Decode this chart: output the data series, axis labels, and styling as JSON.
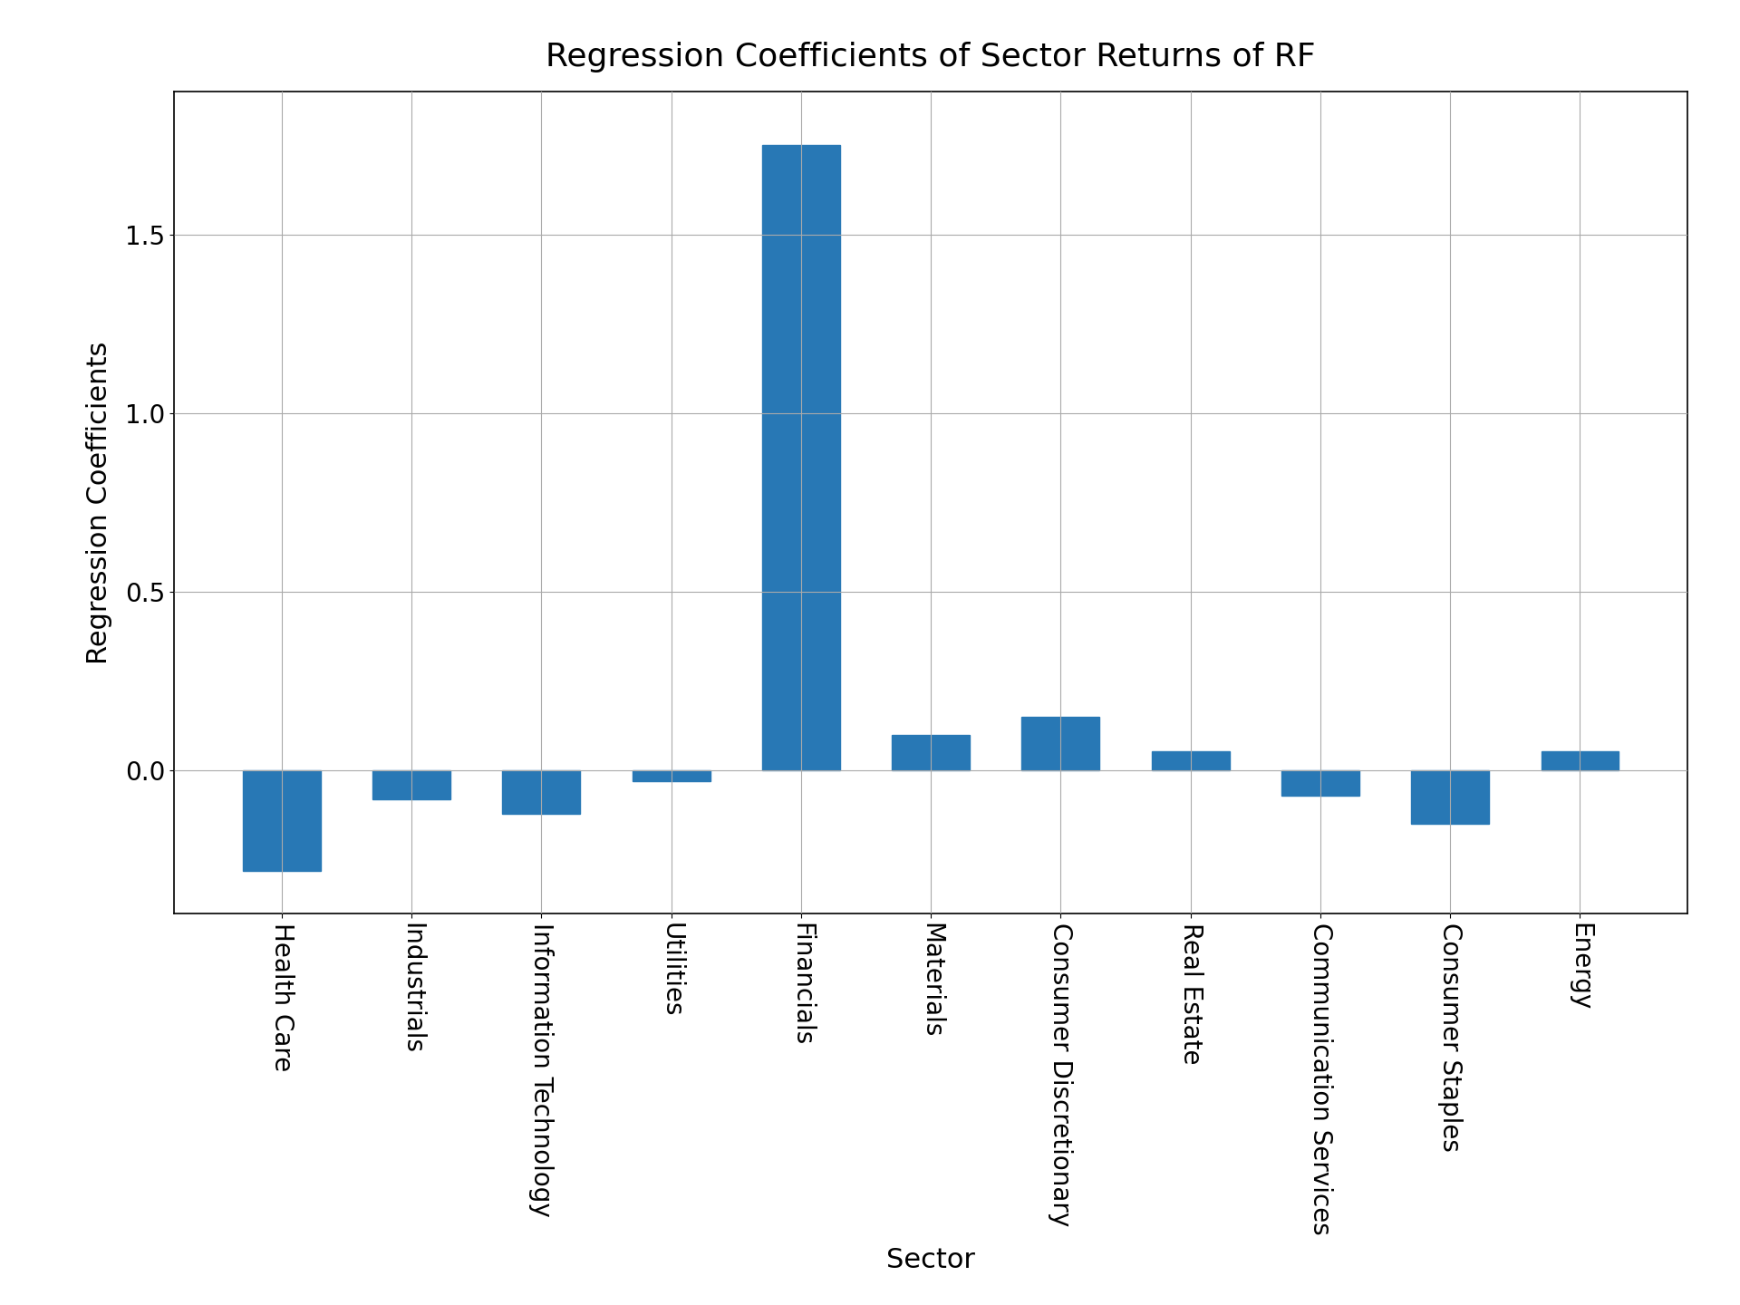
{
  "categories": [
    "Health Care",
    "Industrials",
    "Information Technology",
    "Utilities",
    "Financials",
    "Materials",
    "Consumer Discretionary",
    "Real Estate",
    "Communication Services",
    "Consumer Staples",
    "Energy"
  ],
  "values": [
    -0.28,
    -0.08,
    -0.12,
    -0.03,
    1.75,
    0.1,
    0.15,
    0.055,
    -0.07,
    -0.15,
    0.055
  ],
  "bar_color": "#2878b5",
  "title": "Regression Coefficients of Sector Returns of RF",
  "xlabel": "Sector",
  "ylabel": "Regression Coefficients",
  "title_fontsize": 26,
  "label_fontsize": 22,
  "tick_fontsize": 20,
  "background_color": "#ffffff",
  "grid_color": "#aaaaaa",
  "ylim": [
    -0.4,
    1.9
  ],
  "yticks": [
    -0.5,
    0.0,
    0.5,
    1.0,
    1.5
  ]
}
